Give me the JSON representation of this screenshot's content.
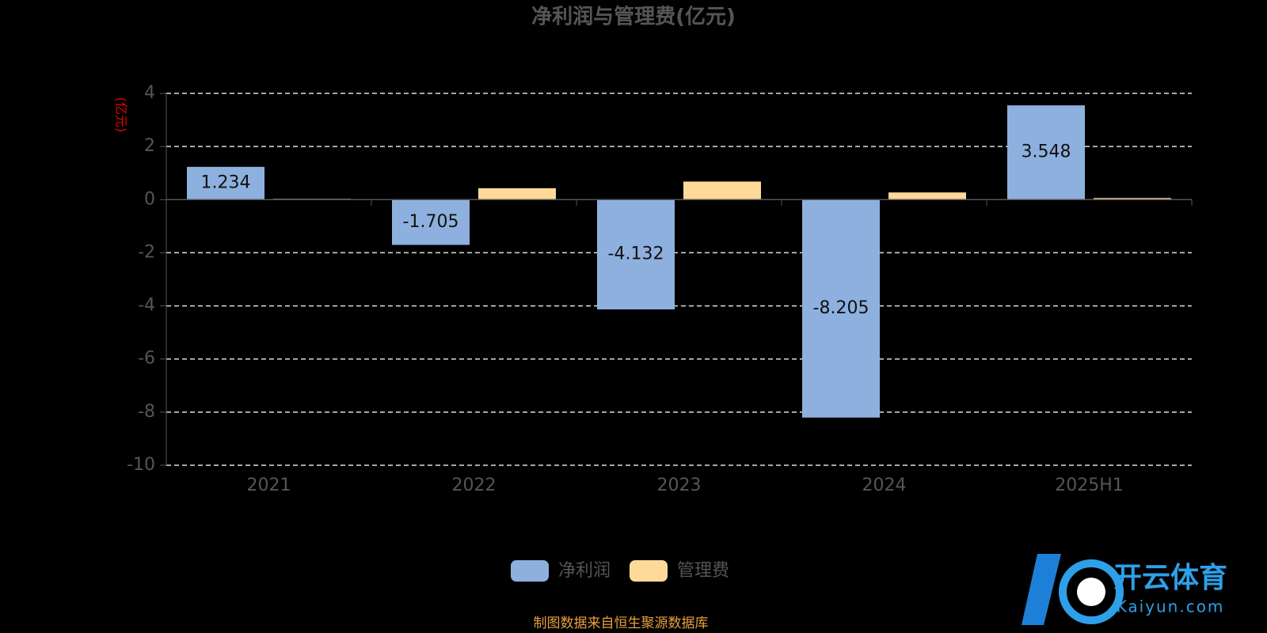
{
  "chart_data": {
    "type": "bar",
    "title": "净利润与管理费(亿元)",
    "y_label": "(亿元)",
    "categories": [
      "2021",
      "2022",
      "2023",
      "2024",
      "2025H1"
    ],
    "series": [
      {
        "name": "净利润",
        "color": "#8eb0de",
        "values": [
          1.234,
          -1.705,
          -4.132,
          -8.205,
          3.548
        ]
      },
      {
        "name": "管理费",
        "color": "#ffd998",
        "values": [
          0.03,
          0.43,
          0.68,
          0.27,
          0.06
        ]
      }
    ],
    "ylim": [
      -10,
      4
    ],
    "yticks": [
      -10,
      -8,
      -6,
      -4,
      -2,
      0,
      2,
      4
    ],
    "grid": true,
    "source": "制图数据来自恒生聚源数据库",
    "watermark": {
      "name": "开云体育",
      "site": "Kaiyun.com"
    }
  }
}
